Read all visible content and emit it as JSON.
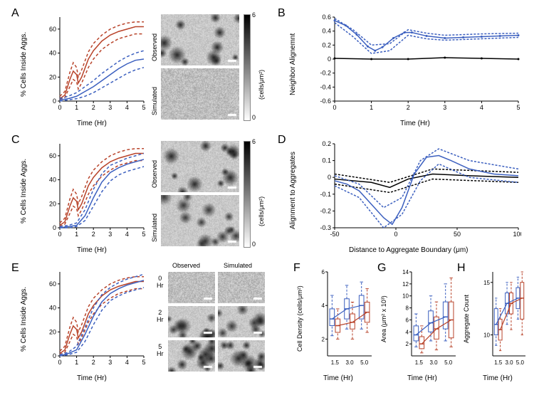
{
  "colors": {
    "observed": "#b8432a",
    "simulated": "#3b5fbf",
    "black": "#000000",
    "bg": "#ffffff",
    "grid": "#ffffff",
    "img_bg": "#cfcfcf",
    "dot": "#2a2a2a"
  },
  "labels": {
    "A": "A",
    "B": "B",
    "C": "C",
    "D": "D",
    "E": "E",
    "F": "F",
    "G": "G",
    "H": "H",
    "time_hr": "Time (Hr)",
    "pct_cells": "% Cells Inside Aggs.",
    "neighbor": "Neighbor Alignemnt",
    "align_aggr": "Alignment to Aggregates",
    "dist_boundary": "Distance to Aggregate Boundary (μm)",
    "cell_density": "Cell Density (cells/μm²)",
    "area": "Area (μm² x 10³)",
    "agg_count": "Aggregate Count",
    "observed": "Observed",
    "simulated": "Simulated",
    "cells_um2": "(cells/μm²)",
    "hr0": "0\nHr",
    "hr2": "2\nHr",
    "hr5": "5\nHr",
    "cb_top": "6",
    "cb_bot": "0"
  },
  "panelA_line": {
    "xlim": [
      0,
      5
    ],
    "ylim": [
      0,
      70
    ],
    "yticks": [
      0,
      20,
      40,
      60
    ],
    "xticks": [
      0,
      1,
      2,
      3,
      4,
      5
    ],
    "obs_mean": [
      [
        0,
        2
      ],
      [
        0.3,
        5
      ],
      [
        0.6,
        18
      ],
      [
        0.8,
        25
      ],
      [
        1,
        22
      ],
      [
        1.1,
        15
      ],
      [
        1.3,
        20
      ],
      [
        1.7,
        35
      ],
      [
        2,
        42
      ],
      [
        2.5,
        50
      ],
      [
        3,
        55
      ],
      [
        3.5,
        58
      ],
      [
        4,
        60
      ],
      [
        4.5,
        62
      ],
      [
        5,
        62
      ]
    ],
    "obs_lo": [
      [
        0,
        1
      ],
      [
        0.3,
        3
      ],
      [
        0.6,
        12
      ],
      [
        0.8,
        18
      ],
      [
        1,
        16
      ],
      [
        1.1,
        10
      ],
      [
        1.3,
        15
      ],
      [
        1.7,
        28
      ],
      [
        2,
        35
      ],
      [
        2.5,
        43
      ],
      [
        3,
        48
      ],
      [
        3.5,
        52
      ],
      [
        4,
        54
      ],
      [
        4.5,
        56
      ],
      [
        5,
        56
      ]
    ],
    "obs_hi": [
      [
        0,
        4
      ],
      [
        0.3,
        8
      ],
      [
        0.6,
        24
      ],
      [
        0.8,
        32
      ],
      [
        1,
        28
      ],
      [
        1.1,
        20
      ],
      [
        1.3,
        26
      ],
      [
        1.7,
        41
      ],
      [
        2,
        48
      ],
      [
        2.5,
        55
      ],
      [
        3,
        60
      ],
      [
        3.5,
        63
      ],
      [
        4,
        65
      ],
      [
        4.5,
        66
      ],
      [
        5,
        66
      ]
    ],
    "sim_mean": [
      [
        0,
        1
      ],
      [
        0.5,
        2
      ],
      [
        1,
        4
      ],
      [
        1.5,
        8
      ],
      [
        2,
        12
      ],
      [
        2.5,
        17
      ],
      [
        3,
        22
      ],
      [
        3.5,
        27
      ],
      [
        4,
        31
      ],
      [
        4.5,
        34
      ],
      [
        5,
        35
      ]
    ],
    "sim_lo": [
      [
        0,
        0
      ],
      [
        0.5,
        1
      ],
      [
        1,
        2
      ],
      [
        1.5,
        4
      ],
      [
        2,
        7
      ],
      [
        2.5,
        11
      ],
      [
        3,
        15
      ],
      [
        3.5,
        19
      ],
      [
        4,
        23
      ],
      [
        4.5,
        26
      ],
      [
        5,
        28
      ]
    ],
    "sim_hi": [
      [
        0,
        2
      ],
      [
        0.5,
        4
      ],
      [
        1,
        7
      ],
      [
        1.5,
        12
      ],
      [
        2,
        17
      ],
      [
        2.5,
        23
      ],
      [
        3,
        28
      ],
      [
        3.5,
        33
      ],
      [
        4,
        37
      ],
      [
        4.5,
        40
      ],
      [
        5,
        42
      ]
    ]
  },
  "panelB": {
    "xlim": [
      0,
      5
    ],
    "ylim": [
      -0.6,
      0.6
    ],
    "yticks": [
      -0.6,
      -0.4,
      -0.2,
      0,
      0.2,
      0.4,
      0.6
    ],
    "xticks": [
      0,
      1,
      2,
      3,
      4,
      5
    ],
    "blue": [
      [
        0,
        0.55
      ],
      [
        0.3,
        0.48
      ],
      [
        0.6,
        0.35
      ],
      [
        0.9,
        0.18
      ],
      [
        1.1,
        0.12
      ],
      [
        1.3,
        0.17
      ],
      [
        1.6,
        0.3
      ],
      [
        1.9,
        0.38
      ],
      [
        2.1,
        0.38
      ],
      [
        2.5,
        0.33
      ],
      [
        3,
        0.3
      ],
      [
        3.5,
        0.31
      ],
      [
        4,
        0.32
      ],
      [
        4.5,
        0.33
      ],
      [
        5,
        0.34
      ]
    ],
    "blue_hi": [
      [
        0,
        0.58
      ],
      [
        0.5,
        0.42
      ],
      [
        1,
        0.2
      ],
      [
        1.5,
        0.22
      ],
      [
        2,
        0.42
      ],
      [
        2.5,
        0.37
      ],
      [
        3,
        0.34
      ],
      [
        4,
        0.36
      ],
      [
        5,
        0.37
      ]
    ],
    "blue_lo": [
      [
        0,
        0.52
      ],
      [
        0.5,
        0.32
      ],
      [
        1,
        0.08
      ],
      [
        1.5,
        0.12
      ],
      [
        2,
        0.34
      ],
      [
        2.5,
        0.29
      ],
      [
        3,
        0.27
      ],
      [
        4,
        0.29
      ],
      [
        5,
        0.31
      ]
    ],
    "black": [
      [
        0,
        0.01
      ],
      [
        1,
        0.0
      ],
      [
        2,
        0.0
      ],
      [
        3,
        0.02
      ],
      [
        4,
        0.01
      ],
      [
        5,
        0.0
      ]
    ]
  },
  "panelC_line": {
    "xlim": [
      0,
      5
    ],
    "ylim": [
      0,
      70
    ],
    "yticks": [
      0,
      20,
      40,
      60
    ],
    "xticks": [
      0,
      1,
      2,
      3,
      4,
      5
    ],
    "obs_mean": [
      [
        0,
        2
      ],
      [
        0.3,
        5
      ],
      [
        0.6,
        18
      ],
      [
        0.8,
        25
      ],
      [
        1,
        22
      ],
      [
        1.1,
        15
      ],
      [
        1.3,
        20
      ],
      [
        1.7,
        35
      ],
      [
        2,
        42
      ],
      [
        2.5,
        50
      ],
      [
        3,
        55
      ],
      [
        3.5,
        58
      ],
      [
        4,
        60
      ],
      [
        4.5,
        62
      ],
      [
        5,
        62
      ]
    ],
    "obs_lo": [
      [
        0,
        1
      ],
      [
        0.3,
        3
      ],
      [
        0.6,
        12
      ],
      [
        0.8,
        18
      ],
      [
        1,
        16
      ],
      [
        1.1,
        10
      ],
      [
        1.3,
        15
      ],
      [
        1.7,
        28
      ],
      [
        2,
        35
      ],
      [
        2.5,
        43
      ],
      [
        3,
        48
      ],
      [
        3.5,
        52
      ],
      [
        4,
        54
      ],
      [
        4.5,
        56
      ],
      [
        5,
        56
      ]
    ],
    "obs_hi": [
      [
        0,
        4
      ],
      [
        0.3,
        8
      ],
      [
        0.6,
        24
      ],
      [
        0.8,
        32
      ],
      [
        1,
        28
      ],
      [
        1.1,
        20
      ],
      [
        1.3,
        26
      ],
      [
        1.7,
        41
      ],
      [
        2,
        48
      ],
      [
        2.5,
        55
      ],
      [
        3,
        60
      ],
      [
        3.5,
        63
      ],
      [
        4,
        65
      ],
      [
        4.5,
        66
      ],
      [
        5,
        66
      ]
    ],
    "sim_mean": [
      [
        0,
        0
      ],
      [
        0.5,
        1
      ],
      [
        1,
        2
      ],
      [
        1.5,
        10
      ],
      [
        2,
        25
      ],
      [
        2.5,
        38
      ],
      [
        3,
        46
      ],
      [
        3.5,
        50
      ],
      [
        4,
        53
      ],
      [
        4.5,
        55
      ],
      [
        5,
        57
      ]
    ],
    "sim_lo": [
      [
        0,
        0
      ],
      [
        0.5,
        0
      ],
      [
        1,
        1
      ],
      [
        1.5,
        6
      ],
      [
        2,
        18
      ],
      [
        2.5,
        30
      ],
      [
        3,
        39
      ],
      [
        3.5,
        44
      ],
      [
        4,
        47
      ],
      [
        4.5,
        49
      ],
      [
        5,
        51
      ]
    ],
    "sim_hi": [
      [
        0,
        1
      ],
      [
        0.5,
        2
      ],
      [
        1,
        4
      ],
      [
        1.5,
        15
      ],
      [
        2,
        32
      ],
      [
        2.5,
        45
      ],
      [
        3,
        52
      ],
      [
        3.5,
        55
      ],
      [
        4,
        58
      ],
      [
        4.5,
        60
      ],
      [
        5,
        62
      ]
    ]
  },
  "panelD": {
    "xlim": [
      -50,
      100
    ],
    "ylim": [
      -0.3,
      0.2
    ],
    "yticks": [
      -0.3,
      -0.2,
      -0.1,
      0,
      0.1,
      0.2
    ],
    "xticks": [
      -50,
      0,
      50,
      100
    ],
    "blue_mean": [
      [
        -50,
        -0.02
      ],
      [
        -40,
        -0.04
      ],
      [
        -30,
        -0.08
      ],
      [
        -20,
        -0.16
      ],
      [
        -10,
        -0.24
      ],
      [
        -3,
        -0.28
      ],
      [
        5,
        -0.18
      ],
      [
        15,
        0.02
      ],
      [
        25,
        0.12
      ],
      [
        35,
        0.13
      ],
      [
        45,
        0.1
      ],
      [
        60,
        0.05
      ],
      [
        80,
        0.02
      ],
      [
        100,
        0.01
      ]
    ],
    "blue_lo": [
      [
        -50,
        -0.05
      ],
      [
        -30,
        -0.12
      ],
      [
        -10,
        -0.3
      ],
      [
        5,
        -0.22
      ],
      [
        20,
        -0.02
      ],
      [
        35,
        0.08
      ],
      [
        60,
        0.0
      ],
      [
        100,
        -0.03
      ]
    ],
    "blue_hi": [
      [
        -50,
        0.01
      ],
      [
        -30,
        -0.04
      ],
      [
        -10,
        -0.18
      ],
      [
        5,
        -0.12
      ],
      [
        20,
        0.1
      ],
      [
        35,
        0.17
      ],
      [
        60,
        0.1
      ],
      [
        100,
        0.05
      ]
    ],
    "black_mean": [
      [
        -50,
        -0.01
      ],
      [
        -20,
        -0.03
      ],
      [
        -5,
        -0.06
      ],
      [
        10,
        -0.01
      ],
      [
        30,
        0.02
      ],
      [
        60,
        0.01
      ],
      [
        100,
        0.0
      ]
    ],
    "black_lo": [
      [
        -50,
        -0.04
      ],
      [
        -5,
        -0.09
      ],
      [
        30,
        -0.01
      ],
      [
        100,
        -0.03
      ]
    ],
    "black_hi": [
      [
        -50,
        0.02
      ],
      [
        -5,
        -0.03
      ],
      [
        30,
        0.05
      ],
      [
        100,
        0.03
      ]
    ]
  },
  "panelE_line": {
    "xlim": [
      0,
      5
    ],
    "ylim": [
      0,
      70
    ],
    "yticks": [
      0,
      20,
      40,
      60
    ],
    "xticks": [
      0,
      1,
      2,
      3,
      4,
      5
    ],
    "obs_mean": [
      [
        0,
        2
      ],
      [
        0.3,
        5
      ],
      [
        0.6,
        18
      ],
      [
        0.8,
        25
      ],
      [
        1,
        22
      ],
      [
        1.1,
        15
      ],
      [
        1.3,
        20
      ],
      [
        1.7,
        35
      ],
      [
        2,
        42
      ],
      [
        2.5,
        50
      ],
      [
        3,
        55
      ],
      [
        3.5,
        58
      ],
      [
        4,
        60
      ],
      [
        4.5,
        62
      ],
      [
        5,
        62
      ]
    ],
    "obs_lo": [
      [
        0,
        1
      ],
      [
        0.3,
        3
      ],
      [
        0.6,
        12
      ],
      [
        0.8,
        18
      ],
      [
        1,
        16
      ],
      [
        1.1,
        10
      ],
      [
        1.3,
        15
      ],
      [
        1.7,
        28
      ],
      [
        2,
        35
      ],
      [
        2.5,
        43
      ],
      [
        3,
        48
      ],
      [
        3.5,
        52
      ],
      [
        4,
        54
      ],
      [
        4.5,
        56
      ],
      [
        5,
        56
      ]
    ],
    "obs_hi": [
      [
        0,
        4
      ],
      [
        0.3,
        8
      ],
      [
        0.6,
        24
      ],
      [
        0.8,
        32
      ],
      [
        1,
        28
      ],
      [
        1.1,
        20
      ],
      [
        1.3,
        26
      ],
      [
        1.7,
        41
      ],
      [
        2,
        48
      ],
      [
        2.5,
        55
      ],
      [
        3,
        60
      ],
      [
        3.5,
        63
      ],
      [
        4,
        65
      ],
      [
        4.5,
        66
      ],
      [
        5,
        66
      ]
    ],
    "sim_mean": [
      [
        0,
        0
      ],
      [
        0.5,
        2
      ],
      [
        1,
        5
      ],
      [
        1.5,
        18
      ],
      [
        2,
        33
      ],
      [
        2.5,
        45
      ],
      [
        3,
        52
      ],
      [
        3.5,
        56
      ],
      [
        4,
        59
      ],
      [
        4.5,
        61
      ],
      [
        5,
        63
      ]
    ],
    "sim_lo": [
      [
        0,
        0
      ],
      [
        0.5,
        1
      ],
      [
        1,
        3
      ],
      [
        1.5,
        12
      ],
      [
        2,
        26
      ],
      [
        2.5,
        38
      ],
      [
        3,
        46
      ],
      [
        3.5,
        50
      ],
      [
        4,
        53
      ],
      [
        4.5,
        55
      ],
      [
        5,
        57
      ]
    ],
    "sim_hi": [
      [
        0,
        1
      ],
      [
        0.5,
        3
      ],
      [
        1,
        8
      ],
      [
        1.5,
        24
      ],
      [
        2,
        40
      ],
      [
        2.5,
        51
      ],
      [
        3,
        57
      ],
      [
        3.5,
        61
      ],
      [
        4,
        64
      ],
      [
        4.5,
        66
      ],
      [
        5,
        68
      ]
    ]
  },
  "panelF": {
    "xticks": [
      "1.5",
      "3.0",
      "5.0"
    ],
    "ylim": [
      1,
      6
    ],
    "yticks": [
      2,
      4,
      6
    ],
    "ylabel": "Cell Density (cells/μm²)",
    "obs": {
      "med": [
        2.8,
        3.0,
        3.6
      ],
      "q1": [
        2.4,
        2.6,
        3.0
      ],
      "q3": [
        3.2,
        3.5,
        4.2
      ],
      "wlo": [
        2.0,
        2.0,
        2.4
      ],
      "whi": [
        3.8,
        4.2,
        5.0
      ]
    },
    "sim": {
      "med": [
        3.2,
        3.8,
        4.0
      ],
      "q1": [
        2.8,
        3.2,
        3.2
      ],
      "q3": [
        3.8,
        4.4,
        4.6
      ],
      "wlo": [
        2.2,
        2.6,
        2.6
      ],
      "whi": [
        4.6,
        5.2,
        5.4
      ]
    }
  },
  "panelG": {
    "xticks": [
      "1.5",
      "3.0",
      "5.0"
    ],
    "ylim": [
      0,
      14
    ],
    "yticks": [
      2,
      4,
      6,
      8,
      10,
      12,
      14
    ],
    "ylabel": "Area (μm² x 10³)",
    "obs": {
      "med": [
        2.0,
        4.5,
        6.0
      ],
      "q1": [
        1.2,
        2.8,
        3.0
      ],
      "q3": [
        3.2,
        6.5,
        9.0
      ],
      "wlo": [
        0.5,
        1.0,
        1.5
      ],
      "whi": [
        5.0,
        9.0,
        13.0
      ]
    },
    "sim": {
      "med": [
        3.5,
        5.5,
        6.5
      ],
      "q1": [
        2.5,
        4.0,
        4.5
      ],
      "q3": [
        5.0,
        7.5,
        9.0
      ],
      "wlo": [
        1.5,
        2.5,
        2.5
      ],
      "whi": [
        7.0,
        10.0,
        12.0
      ]
    }
  },
  "panelH": {
    "xticks": [
      "1.5",
      "3.0",
      "5.0"
    ],
    "ylim": [
      8,
      16
    ],
    "yticks": [
      10,
      15
    ],
    "ylabel": "Aggregate Count",
    "obs": {
      "med": [
        10.5,
        13.0,
        13.5
      ],
      "q1": [
        9.5,
        12.0,
        11.5
      ],
      "q3": [
        11.5,
        14.0,
        15.0
      ],
      "wlo": [
        8.5,
        10.5,
        10.0
      ],
      "whi": [
        12.5,
        15.0,
        16.0
      ]
    },
    "sim": {
      "med": [
        11.0,
        13.0,
        13.5
      ],
      "q1": [
        10.0,
        12.0,
        12.5
      ],
      "q3": [
        12.5,
        14.0,
        14.5
      ],
      "wlo": [
        9.0,
        11.0,
        11.5
      ],
      "whi": [
        13.5,
        15.0,
        15.5
      ]
    }
  },
  "images": {
    "A_obs": {
      "dots": 12,
      "contrast": 1.0,
      "blur": false
    },
    "A_sim": {
      "dots": 0,
      "contrast": 0.3,
      "blur": true
    },
    "C_obs": {
      "dots": 12,
      "contrast": 1.0,
      "blur": false
    },
    "C_sim": {
      "dots": 14,
      "contrast": 0.9,
      "blur": false
    },
    "E": [
      {
        "obs": {
          "dots": 0,
          "contrast": 0.25,
          "blur": true
        },
        "sim": {
          "dots": 0,
          "contrast": 0.25,
          "blur": true
        }
      },
      {
        "obs": {
          "dots": 10,
          "contrast": 0.9,
          "blur": false
        },
        "sim": {
          "dots": 9,
          "contrast": 0.9,
          "blur": false
        }
      },
      {
        "obs": {
          "dots": 13,
          "contrast": 1.0,
          "blur": false
        },
        "sim": {
          "dots": 12,
          "contrast": 1.0,
          "blur": false
        }
      }
    ]
  }
}
